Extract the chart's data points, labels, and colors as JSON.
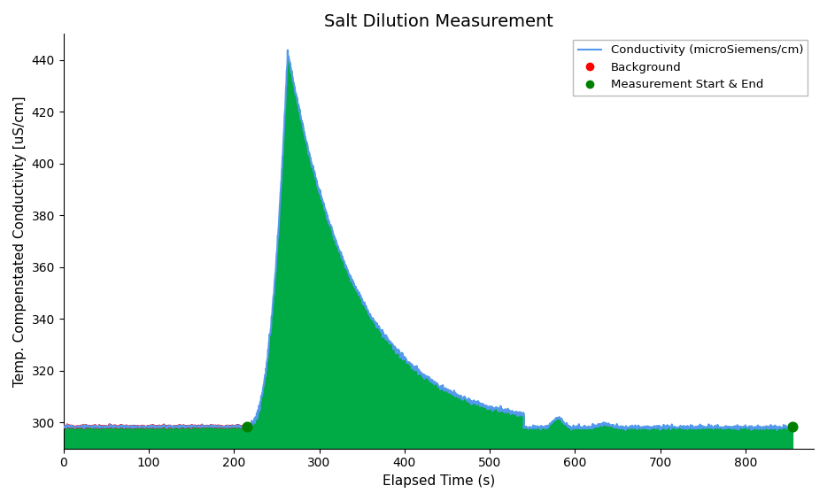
{
  "title": "Salt Dilution Measurement",
  "xlabel": "Elapsed Time (s)",
  "ylabel": "Temp. Compenstated Conductivity [uS/cm]",
  "xlim": [
    0,
    880
  ],
  "ylim": [
    290,
    450
  ],
  "background_color": "white",
  "line_color": "#5599ee",
  "fill_color": "#00aa44",
  "background_level": 298.5,
  "fill_bottom": 288,
  "meas_start": 215,
  "meas_end": 855,
  "peak_time": 263,
  "peak_value": 443,
  "decay_tau": 80,
  "legend_labels": [
    "Conductivity (microSiemens/cm)",
    "Background",
    "Measurement Start & End"
  ],
  "legend_line_color": "#5599ee",
  "title_fontsize": 14,
  "axis_fontsize": 11,
  "tick_fontsize": 10
}
